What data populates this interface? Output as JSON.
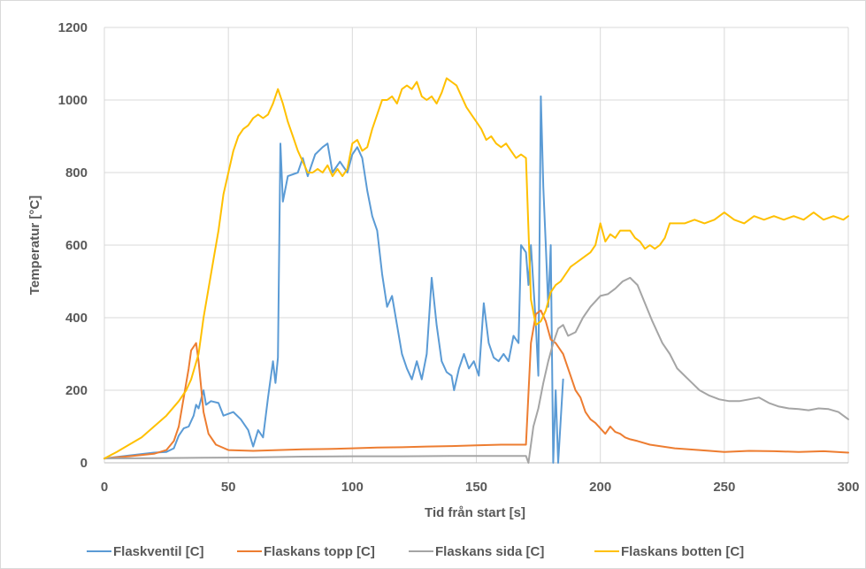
{
  "chart_data": {
    "type": "line",
    "title": "",
    "xlabel": "Tid från start [s]",
    "ylabel": "Temperatur [°C]",
    "xlim": [
      0,
      300
    ],
    "ylim": [
      0,
      1200
    ],
    "xticks": [
      0,
      50,
      100,
      150,
      200,
      250,
      300
    ],
    "yticks": [
      0,
      200,
      400,
      600,
      800,
      1000,
      1200
    ],
    "grid": true,
    "legend_position": "bottom",
    "series": [
      {
        "name": "Flaskventil [C]",
        "color": "#5b9bd5",
        "points": [
          [
            0,
            12
          ],
          [
            10,
            20
          ],
          [
            20,
            28
          ],
          [
            25,
            30
          ],
          [
            28,
            40
          ],
          [
            30,
            75
          ],
          [
            32,
            95
          ],
          [
            34,
            100
          ],
          [
            36,
            130
          ],
          [
            37,
            160
          ],
          [
            38,
            150
          ],
          [
            40,
            200
          ],
          [
            41,
            160
          ],
          [
            43,
            170
          ],
          [
            46,
            165
          ],
          [
            48,
            130
          ],
          [
            52,
            140
          ],
          [
            55,
            120
          ],
          [
            58,
            90
          ],
          [
            60,
            45
          ],
          [
            62,
            90
          ],
          [
            64,
            70
          ],
          [
            66,
            180
          ],
          [
            68,
            280
          ],
          [
            69,
            220
          ],
          [
            70,
            290
          ],
          [
            71,
            880
          ],
          [
            72,
            720
          ],
          [
            74,
            790
          ],
          [
            78,
            800
          ],
          [
            80,
            840
          ],
          [
            82,
            790
          ],
          [
            85,
            850
          ],
          [
            88,
            870
          ],
          [
            90,
            880
          ],
          [
            92,
            800
          ],
          [
            95,
            830
          ],
          [
            98,
            800
          ],
          [
            100,
            850
          ],
          [
            102,
            870
          ],
          [
            104,
            840
          ],
          [
            106,
            750
          ],
          [
            108,
            680
          ],
          [
            110,
            640
          ],
          [
            112,
            520
          ],
          [
            114,
            430
          ],
          [
            116,
            460
          ],
          [
            118,
            380
          ],
          [
            120,
            300
          ],
          [
            122,
            260
          ],
          [
            124,
            230
          ],
          [
            126,
            280
          ],
          [
            128,
            230
          ],
          [
            130,
            300
          ],
          [
            132,
            510
          ],
          [
            134,
            380
          ],
          [
            136,
            280
          ],
          [
            138,
            250
          ],
          [
            140,
            240
          ],
          [
            141,
            200
          ],
          [
            143,
            260
          ],
          [
            145,
            300
          ],
          [
            147,
            260
          ],
          [
            149,
            280
          ],
          [
            151,
            240
          ],
          [
            153,
            440
          ],
          [
            155,
            330
          ],
          [
            157,
            290
          ],
          [
            159,
            280
          ],
          [
            161,
            300
          ],
          [
            163,
            280
          ],
          [
            165,
            350
          ],
          [
            167,
            330
          ],
          [
            168,
            600
          ],
          [
            170,
            580
          ],
          [
            171,
            490
          ],
          [
            172,
            600
          ],
          [
            174,
            380
          ],
          [
            175,
            240
          ],
          [
            176,
            1010
          ],
          [
            177,
            760
          ],
          [
            178,
            600
          ],
          [
            179,
            430
          ],
          [
            180,
            600
          ],
          [
            181,
            0
          ],
          [
            182,
            200
          ],
          [
            183,
            0
          ],
          [
            185,
            230
          ]
        ]
      },
      {
        "name": "Flaskans topp [C]",
        "color": "#ed7d31",
        "points": [
          [
            0,
            12
          ],
          [
            10,
            18
          ],
          [
            20,
            25
          ],
          [
            25,
            35
          ],
          [
            28,
            60
          ],
          [
            30,
            100
          ],
          [
            32,
            180
          ],
          [
            34,
            260
          ],
          [
            35,
            310
          ],
          [
            37,
            330
          ],
          [
            38,
            280
          ],
          [
            40,
            140
          ],
          [
            42,
            80
          ],
          [
            45,
            50
          ],
          [
            50,
            35
          ],
          [
            60,
            33
          ],
          [
            70,
            35
          ],
          [
            80,
            37
          ],
          [
            90,
            38
          ],
          [
            100,
            40
          ],
          [
            110,
            42
          ],
          [
            120,
            43
          ],
          [
            130,
            45
          ],
          [
            140,
            46
          ],
          [
            150,
            48
          ],
          [
            160,
            50
          ],
          [
            170,
            50
          ],
          [
            172,
            330
          ],
          [
            174,
            410
          ],
          [
            176,
            420
          ],
          [
            178,
            390
          ],
          [
            180,
            340
          ],
          [
            182,
            330
          ],
          [
            185,
            300
          ],
          [
            188,
            240
          ],
          [
            190,
            200
          ],
          [
            192,
            180
          ],
          [
            194,
            140
          ],
          [
            196,
            120
          ],
          [
            198,
            110
          ],
          [
            200,
            95
          ],
          [
            202,
            80
          ],
          [
            204,
            100
          ],
          [
            206,
            85
          ],
          [
            208,
            80
          ],
          [
            210,
            70
          ],
          [
            212,
            65
          ],
          [
            215,
            60
          ],
          [
            220,
            50
          ],
          [
            230,
            40
          ],
          [
            240,
            35
          ],
          [
            250,
            30
          ],
          [
            260,
            33
          ],
          [
            270,
            32
          ],
          [
            280,
            30
          ],
          [
            290,
            32
          ],
          [
            300,
            28
          ]
        ]
      },
      {
        "name": "Flaskans sida [C]",
        "color": "#a5a5a5",
        "points": [
          [
            0,
            12
          ],
          [
            20,
            13
          ],
          [
            40,
            14
          ],
          [
            60,
            15
          ],
          [
            80,
            17
          ],
          [
            100,
            18
          ],
          [
            120,
            18
          ],
          [
            140,
            19
          ],
          [
            160,
            19
          ],
          [
            170,
            19
          ],
          [
            171,
            0
          ],
          [
            173,
            100
          ],
          [
            175,
            150
          ],
          [
            177,
            220
          ],
          [
            179,
            280
          ],
          [
            181,
            330
          ],
          [
            183,
            370
          ],
          [
            185,
            380
          ],
          [
            187,
            350
          ],
          [
            190,
            360
          ],
          [
            193,
            400
          ],
          [
            196,
            430
          ],
          [
            200,
            460
          ],
          [
            203,
            465
          ],
          [
            206,
            480
          ],
          [
            209,
            500
          ],
          [
            212,
            510
          ],
          [
            215,
            490
          ],
          [
            218,
            440
          ],
          [
            221,
            390
          ],
          [
            225,
            330
          ],
          [
            228,
            300
          ],
          [
            231,
            260
          ],
          [
            234,
            240
          ],
          [
            237,
            220
          ],
          [
            240,
            200
          ],
          [
            244,
            185
          ],
          [
            248,
            175
          ],
          [
            252,
            170
          ],
          [
            256,
            170
          ],
          [
            260,
            175
          ],
          [
            264,
            180
          ],
          [
            268,
            165
          ],
          [
            272,
            155
          ],
          [
            276,
            150
          ],
          [
            280,
            148
          ],
          [
            284,
            145
          ],
          [
            288,
            150
          ],
          [
            292,
            148
          ],
          [
            296,
            140
          ],
          [
            300,
            120
          ]
        ]
      },
      {
        "name": "Flaskans botten [C]",
        "color": "#ffc000",
        "points": [
          [
            0,
            12
          ],
          [
            5,
            30
          ],
          [
            10,
            50
          ],
          [
            15,
            70
          ],
          [
            20,
            100
          ],
          [
            25,
            130
          ],
          [
            30,
            170
          ],
          [
            33,
            200
          ],
          [
            35,
            230
          ],
          [
            38,
            300
          ],
          [
            40,
            400
          ],
          [
            42,
            480
          ],
          [
            44,
            560
          ],
          [
            46,
            640
          ],
          [
            48,
            740
          ],
          [
            50,
            800
          ],
          [
            52,
            860
          ],
          [
            54,
            900
          ],
          [
            56,
            920
          ],
          [
            58,
            930
          ],
          [
            60,
            950
          ],
          [
            62,
            960
          ],
          [
            64,
            950
          ],
          [
            66,
            960
          ],
          [
            68,
            990
          ],
          [
            70,
            1030
          ],
          [
            72,
            990
          ],
          [
            74,
            940
          ],
          [
            76,
            900
          ],
          [
            78,
            860
          ],
          [
            80,
            830
          ],
          [
            82,
            800
          ],
          [
            84,
            800
          ],
          [
            86,
            810
          ],
          [
            88,
            800
          ],
          [
            90,
            820
          ],
          [
            92,
            790
          ],
          [
            94,
            810
          ],
          [
            96,
            790
          ],
          [
            98,
            810
          ],
          [
            100,
            880
          ],
          [
            102,
            890
          ],
          [
            104,
            860
          ],
          [
            106,
            870
          ],
          [
            108,
            920
          ],
          [
            110,
            960
          ],
          [
            112,
            1000
          ],
          [
            114,
            1000
          ],
          [
            116,
            1010
          ],
          [
            118,
            990
          ],
          [
            120,
            1030
          ],
          [
            122,
            1040
          ],
          [
            124,
            1030
          ],
          [
            126,
            1050
          ],
          [
            128,
            1010
          ],
          [
            130,
            1000
          ],
          [
            132,
            1010
          ],
          [
            134,
            990
          ],
          [
            136,
            1020
          ],
          [
            138,
            1060
          ],
          [
            140,
            1050
          ],
          [
            142,
            1040
          ],
          [
            144,
            1010
          ],
          [
            146,
            980
          ],
          [
            148,
            960
          ],
          [
            150,
            940
          ],
          [
            152,
            920
          ],
          [
            154,
            890
          ],
          [
            156,
            900
          ],
          [
            158,
            880
          ],
          [
            160,
            870
          ],
          [
            162,
            880
          ],
          [
            164,
            860
          ],
          [
            166,
            840
          ],
          [
            168,
            850
          ],
          [
            170,
            840
          ],
          [
            172,
            450
          ],
          [
            174,
            380
          ],
          [
            176,
            390
          ],
          [
            178,
            420
          ],
          [
            180,
            470
          ],
          [
            182,
            490
          ],
          [
            184,
            500
          ],
          [
            186,
            520
          ],
          [
            188,
            540
          ],
          [
            190,
            550
          ],
          [
            192,
            560
          ],
          [
            194,
            570
          ],
          [
            196,
            580
          ],
          [
            198,
            600
          ],
          [
            200,
            660
          ],
          [
            202,
            610
          ],
          [
            204,
            630
          ],
          [
            206,
            620
          ],
          [
            208,
            640
          ],
          [
            212,
            640
          ],
          [
            214,
            620
          ],
          [
            216,
            610
          ],
          [
            218,
            590
          ],
          [
            220,
            600
          ],
          [
            222,
            590
          ],
          [
            224,
            600
          ],
          [
            226,
            620
          ],
          [
            228,
            660
          ],
          [
            230,
            660
          ],
          [
            234,
            660
          ],
          [
            238,
            670
          ],
          [
            242,
            660
          ],
          [
            246,
            670
          ],
          [
            250,
            690
          ],
          [
            254,
            670
          ],
          [
            258,
            660
          ],
          [
            262,
            680
          ],
          [
            266,
            670
          ],
          [
            270,
            680
          ],
          [
            274,
            670
          ],
          [
            278,
            680
          ],
          [
            282,
            670
          ],
          [
            286,
            690
          ],
          [
            290,
            670
          ],
          [
            294,
            680
          ],
          [
            298,
            670
          ],
          [
            300,
            680
          ]
        ]
      }
    ]
  }
}
